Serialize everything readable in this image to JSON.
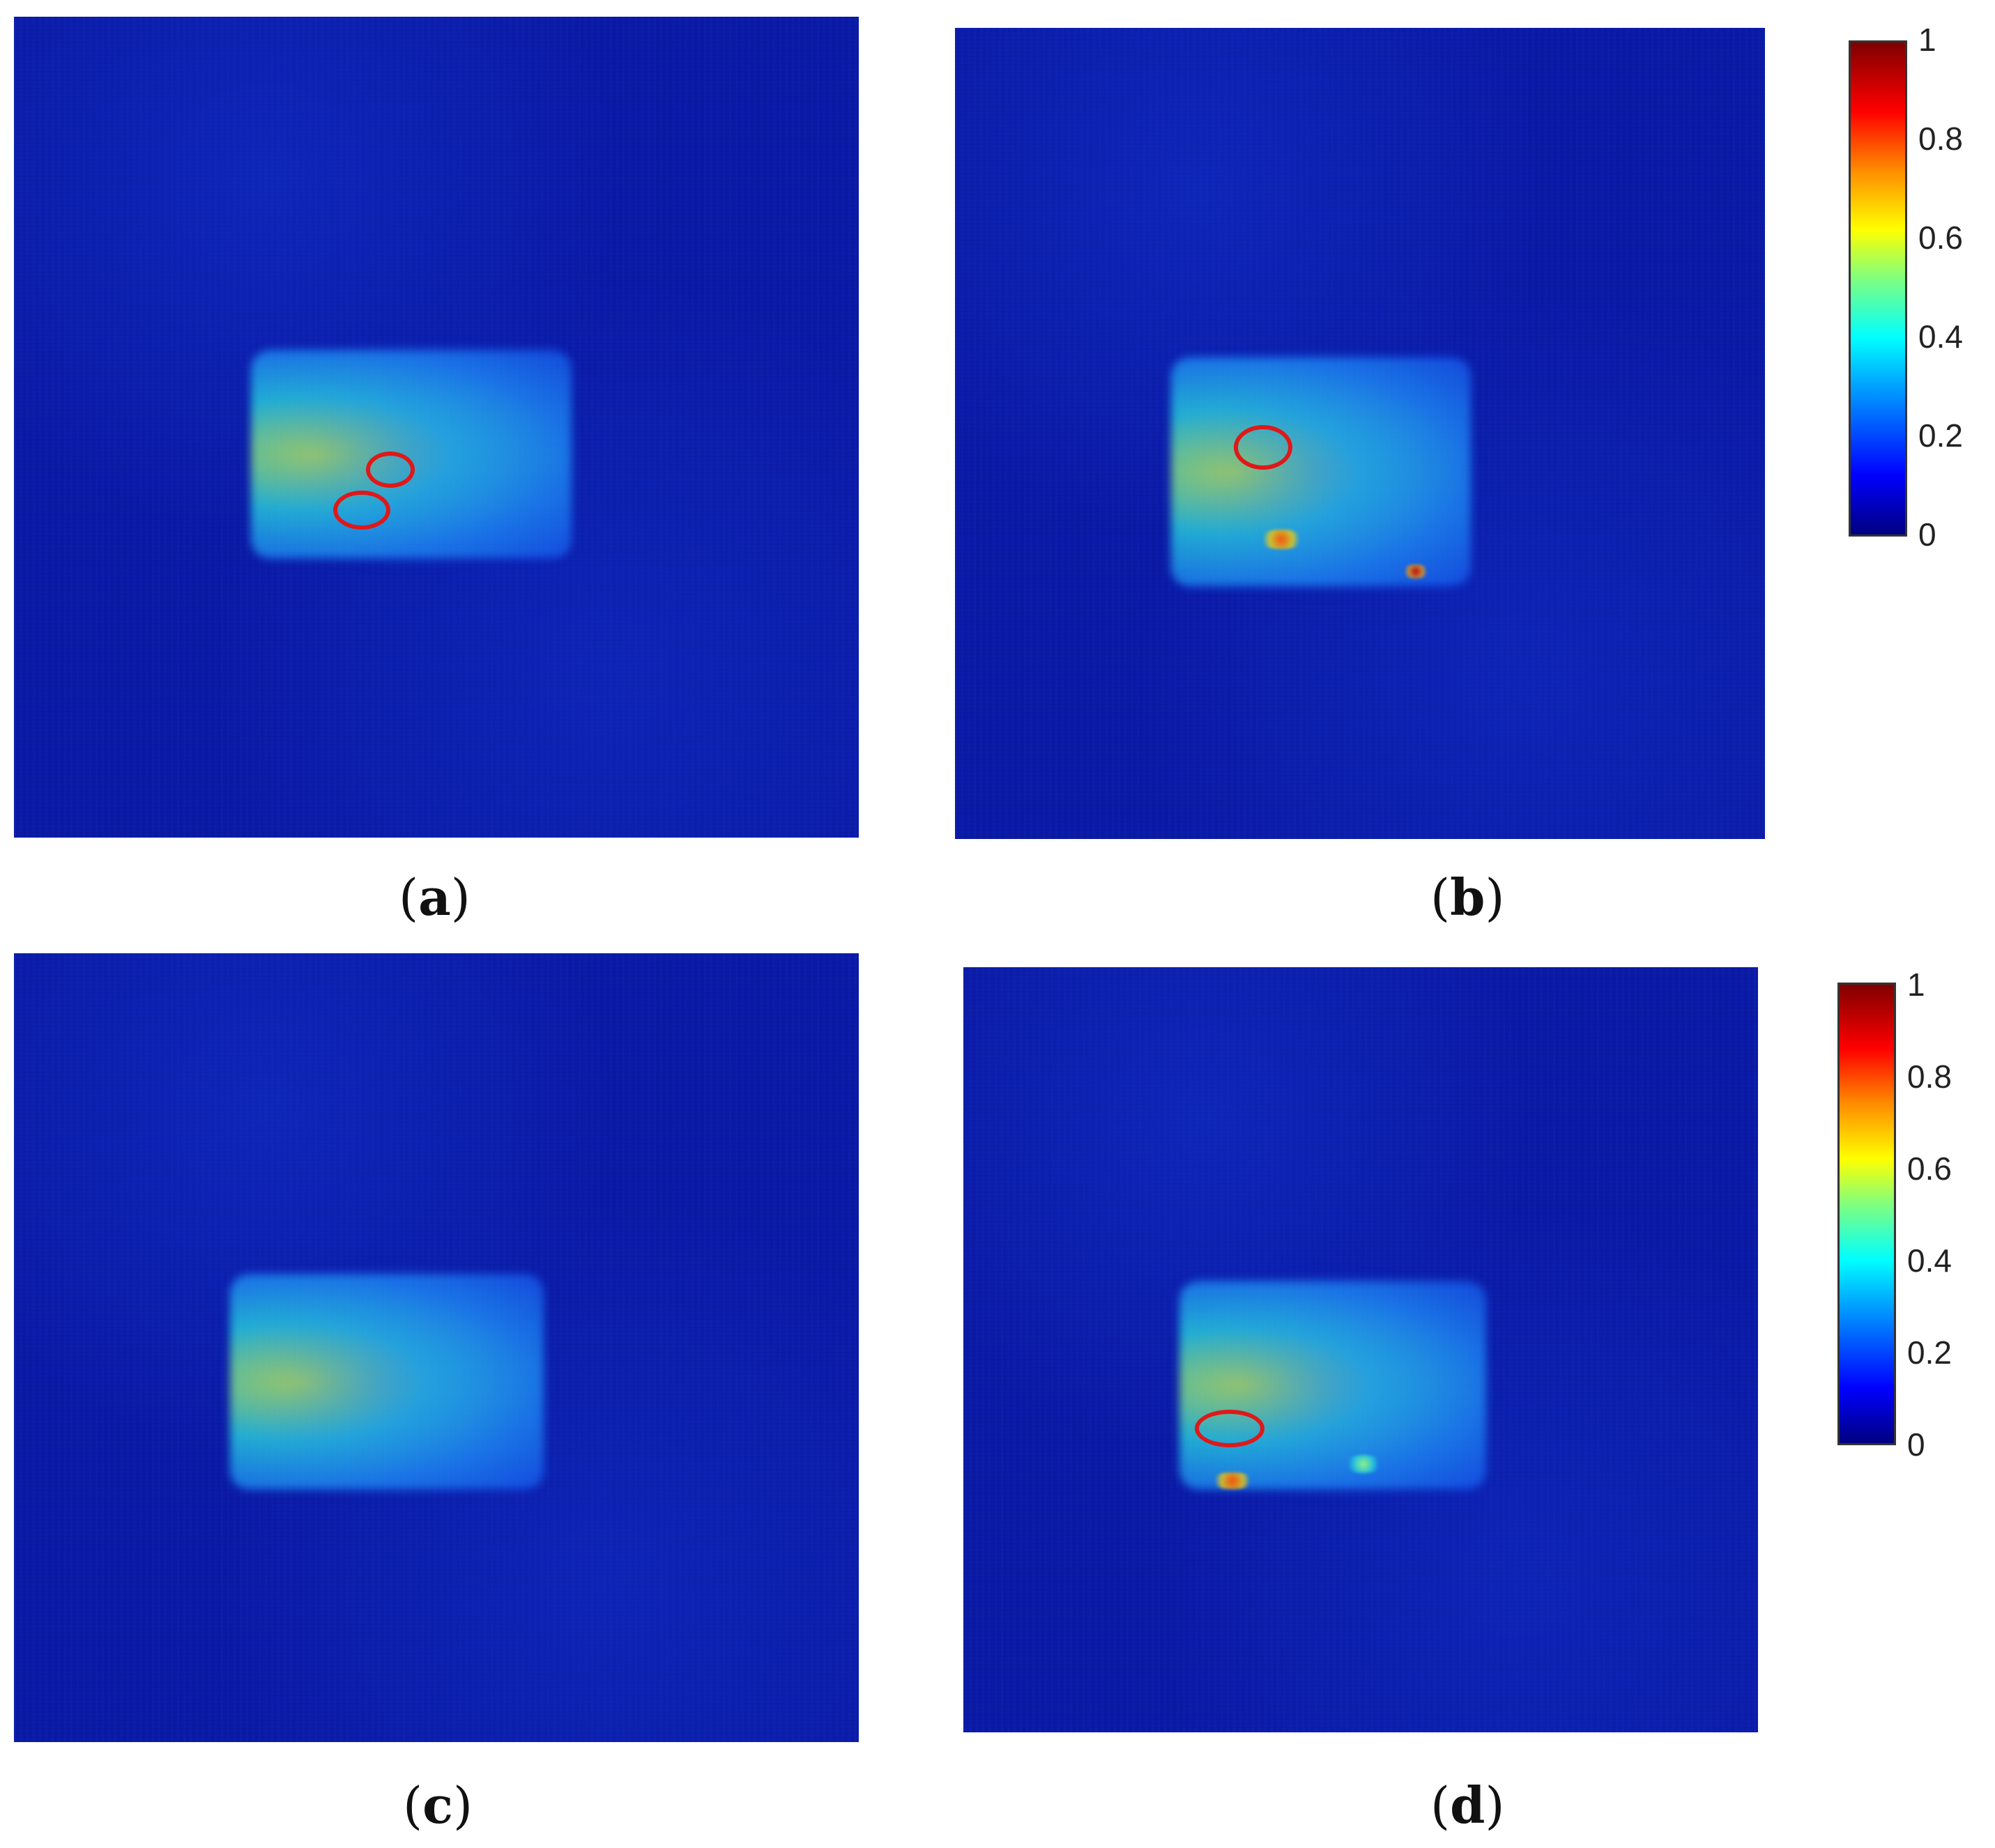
{
  "panels": [
    {
      "id": "a",
      "label_text": "a"
    },
    {
      "id": "b",
      "label_text": "b"
    },
    {
      "id": "c",
      "label_text": "c"
    },
    {
      "id": "d",
      "label_text": "d"
    }
  ],
  "colorbars": [
    {
      "ticks": [
        "1",
        "0.8",
        "0.6",
        "0.4",
        "0.2",
        "0"
      ]
    },
    {
      "ticks": [
        "1",
        "0.8",
        "0.6",
        "0.4",
        "0.2",
        "0"
      ]
    }
  ],
  "colors": {
    "background_blue": "#0b1aa6",
    "marker_red": "#e01818"
  }
}
